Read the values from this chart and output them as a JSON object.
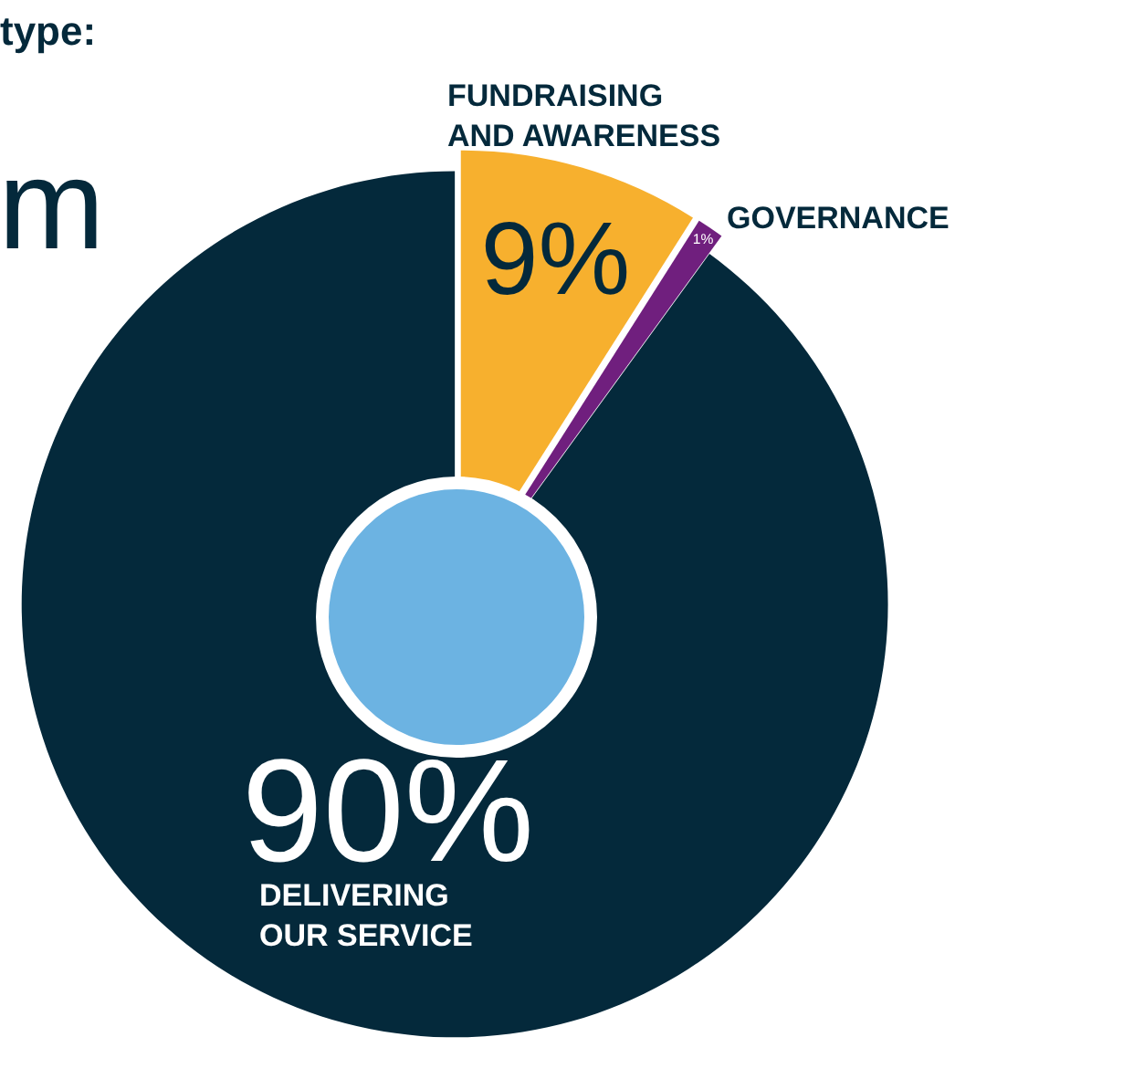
{
  "chart_data": {
    "type": "pie",
    "title": "type:",
    "annotations": [
      "m"
    ],
    "categories": [
      "FUNDRAISING AND AWARENESS",
      "GOVERNANCE",
      "DELIVERING OUR SERVICE"
    ],
    "values": [
      9,
      1,
      90
    ],
    "colors": [
      "#f7b02e",
      "#701f7e",
      "#04293b"
    ],
    "value_labels": [
      "9%",
      "1%",
      "90%"
    ],
    "legend": false
  }
}
